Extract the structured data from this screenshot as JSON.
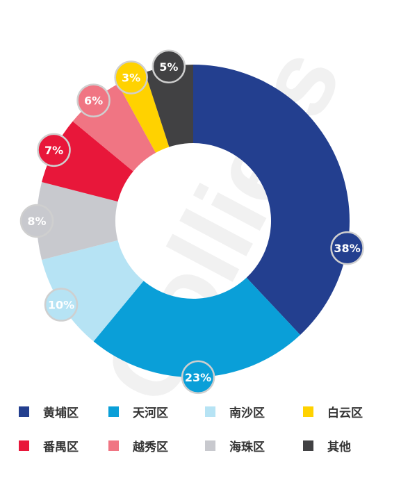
{
  "watermark": "Colliers",
  "chart_data": {
    "type": "pie",
    "donut": true,
    "start": "top",
    "direction": "clockwise",
    "categories": [
      "黄埔区",
      "天河区",
      "南沙区",
      "海珠区",
      "番禺区",
      "越秀区",
      "白云区",
      "其他"
    ],
    "values": [
      38,
      23,
      10,
      8,
      7,
      6,
      3,
      5
    ],
    "data_labels": [
      "38%",
      "23%",
      "10%",
      "8%",
      "7%",
      "6%",
      "3%",
      "5%"
    ],
    "colors": [
      "#233f8f",
      "#0a9fd8",
      "#b6e3f4",
      "#c8c9ce",
      "#e8173a",
      "#f07583",
      "#ffd200",
      "#414143"
    ],
    "legend_placement": "bottom",
    "legend": [
      {
        "label": "黄埔区",
        "color": "#233f8f"
      },
      {
        "label": "天河区",
        "color": "#0a9fd8"
      },
      {
        "label": "南沙区",
        "color": "#b6e3f4"
      },
      {
        "label": "白云区",
        "color": "#ffd200"
      },
      {
        "label": "番禺区",
        "color": "#e8173a"
      },
      {
        "label": "越秀区",
        "color": "#f07583"
      },
      {
        "label": "海珠区",
        "color": "#c8c9ce"
      },
      {
        "label": "其他",
        "color": "#414143"
      }
    ]
  }
}
